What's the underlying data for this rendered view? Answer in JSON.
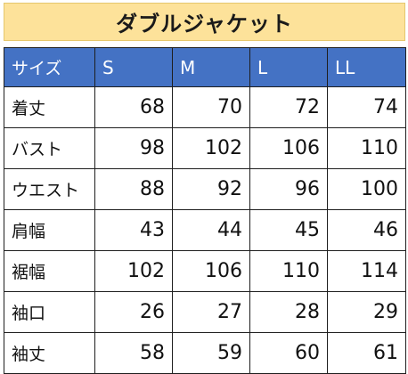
{
  "title": "ダブルジャケット",
  "colors": {
    "title_background": "#fde29a",
    "header_background": "#4472c4",
    "header_text": "#ffffff",
    "border": "#1e1e1e"
  },
  "table": {
    "header": [
      "サイズ",
      "S",
      "M",
      "L",
      "LL"
    ],
    "rows": [
      {
        "label": "着丈",
        "values": [
          "68",
          "70",
          "72",
          "74"
        ]
      },
      {
        "label": "バスト",
        "values": [
          "98",
          "102",
          "106",
          "110"
        ]
      },
      {
        "label": "ウエスト",
        "values": [
          "88",
          "92",
          "96",
          "100"
        ]
      },
      {
        "label": "肩幅",
        "values": [
          "43",
          "44",
          "45",
          "46"
        ]
      },
      {
        "label": "裾幅",
        "values": [
          "102",
          "106",
          "110",
          "114"
        ]
      },
      {
        "label": "袖口",
        "values": [
          "26",
          "27",
          "28",
          "29"
        ]
      },
      {
        "label": "袖丈",
        "values": [
          "58",
          "59",
          "60",
          "61"
        ]
      }
    ]
  }
}
